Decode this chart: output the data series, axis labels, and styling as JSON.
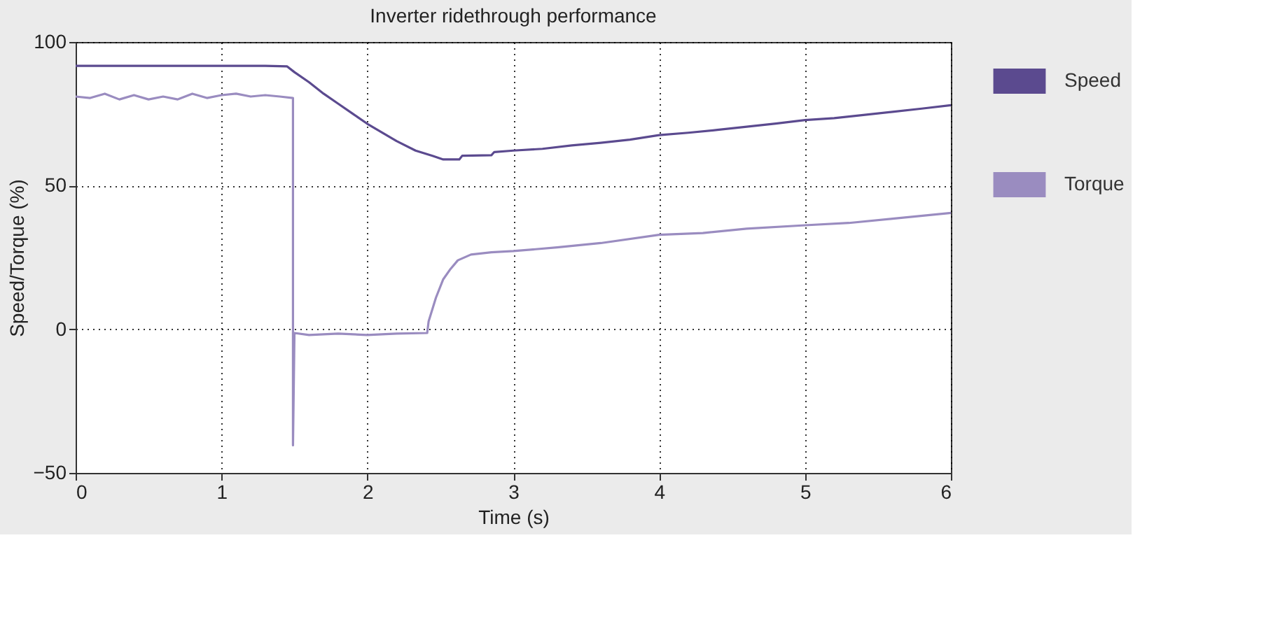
{
  "chart_data": {
    "type": "line",
    "title": "Inverter ridethrough performance",
    "xlabel": "Time (s)",
    "ylabel": "Speed/Torque (%)",
    "xlim": [
      0,
      6
    ],
    "ylim": [
      -50,
      100
    ],
    "xticks": [
      0,
      1,
      2,
      3,
      4,
      5,
      6
    ],
    "yticks": [
      -50,
      0,
      50,
      100
    ],
    "grid": true,
    "legend": "top right",
    "line_style": "solid",
    "marker": "none",
    "series": [
      {
        "name": "Speed",
        "color": "#5b4a8f",
        "x": [
          0,
          1.3,
          1.45,
          1.5,
          1.6,
          1.7,
          1.8,
          1.9,
          2.0,
          2.1,
          2.2,
          2.33,
          2.45,
          2.52,
          2.63,
          2.65,
          2.85,
          2.87,
          3.0,
          3.2,
          3.4,
          3.6,
          3.8,
          4.0,
          4.2,
          4.4,
          4.6,
          4.8,
          5.0,
          5.2,
          5.4,
          5.6,
          5.8,
          6.0
        ],
        "values": [
          91.7,
          91.7,
          91.5,
          89.5,
          86,
          82,
          78.5,
          75,
          71.5,
          68.5,
          65.5,
          62.2,
          60.3,
          59.1,
          59.1,
          60.4,
          60.6,
          61.7,
          62.2,
          62.8,
          64,
          64.9,
          66,
          67.6,
          68.4,
          69.4,
          70.5,
          71.6,
          72.8,
          73.5,
          74.6,
          75.7,
          76.8,
          78
        ]
      },
      {
        "name": "Torque",
        "color": "#9a8cc0",
        "x": [
          0,
          0.1,
          0.2,
          0.3,
          0.4,
          0.5,
          0.6,
          0.7,
          0.8,
          0.9,
          1.0,
          1.1,
          1.2,
          1.3,
          1.4,
          1.49,
          1.49,
          1.5,
          1.6,
          1.8,
          2.0,
          2.2,
          2.41,
          2.42,
          2.47,
          2.52,
          2.57,
          2.62,
          2.71,
          2.85,
          3.0,
          3.3,
          3.6,
          4.0,
          4.3,
          4.6,
          5.0,
          5.3,
          5.6,
          6.0
        ],
        "values": [
          81,
          80.5,
          82,
          80,
          81.5,
          80,
          81,
          80,
          82,
          80.5,
          81.5,
          82,
          81,
          81.5,
          81,
          80.5,
          -40.4,
          -1.3,
          -2,
          -1.5,
          -2,
          -1.5,
          -1.3,
          2.8,
          11,
          17.4,
          21,
          24,
          26,
          26.8,
          27.2,
          28.5,
          30,
          32.9,
          33.5,
          35,
          36.2,
          37,
          38.5,
          40.5
        ]
      }
    ]
  }
}
